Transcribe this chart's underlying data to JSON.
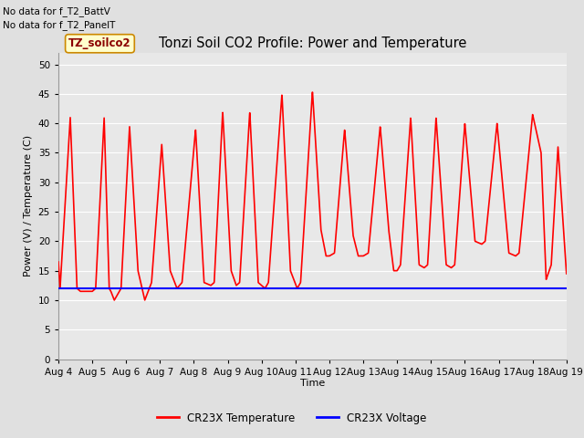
{
  "title": "Tonzi Soil CO2 Profile: Power and Temperature",
  "ylabel": "Power (V) / Temperature (C)",
  "xlabel": "Time",
  "top_left_text_line1": "No data for f_T2_BattV",
  "top_left_text_line2": "No data for f_T2_PanelT",
  "watermark": "TZ_soilco2",
  "ylim": [
    0,
    52
  ],
  "yticks": [
    0,
    5,
    10,
    15,
    20,
    25,
    30,
    35,
    40,
    45,
    50
  ],
  "xtick_labels": [
    "Aug 4",
    "Aug 5",
    "Aug 6",
    "Aug 7",
    "Aug 8",
    "Aug 9",
    "Aug 10",
    "Aug 11",
    "Aug 12",
    "Aug 13",
    "Aug 14",
    "Aug 15",
    "Aug 16",
    "Aug 17",
    "Aug 18",
    "Aug 19"
  ],
  "background_color": "#e0e0e0",
  "plot_bg_color": "#e8e8e8",
  "grid_color": "#ffffff",
  "temp_color": "#ff0000",
  "volt_color": "#0000ff",
  "legend_temp": "CR23X Temperature",
  "legend_volt": "CR23X Voltage",
  "voltage_value": 12.0,
  "segments": [
    [
      0.0,
      1.0,
      11.5,
      41.0,
      0.3
    ],
    [
      1.0,
      1.5,
      11.0,
      11.0,
      0.5
    ],
    [
      1.5,
      2.0,
      10.0,
      39.5,
      0.4
    ],
    [
      2.0,
      3.0,
      10.0,
      36.5,
      0.5
    ],
    [
      3.0,
      4.0,
      12.0,
      39.0,
      0.45
    ],
    [
      4.0,
      4.5,
      12.5,
      42.0,
      0.5
    ],
    [
      4.5,
      5.0,
      12.5,
      42.0,
      0.4
    ],
    [
      5.0,
      6.0,
      13.0,
      42.0,
      0.35
    ],
    [
      6.0,
      7.0,
      12.0,
      45.0,
      0.5
    ],
    [
      7.0,
      8.0,
      15.0,
      45.5,
      0.45
    ],
    [
      8.0,
      9.0,
      17.5,
      39.0,
      0.45
    ],
    [
      9.0,
      10.0,
      15.0,
      39.5,
      0.5
    ],
    [
      10.0,
      11.0,
      15.5,
      41.5,
      0.35
    ],
    [
      11.0,
      12.0,
      15.5,
      41.0,
      0.5
    ],
    [
      12.0,
      13.0,
      19.5,
      40.0,
      0.5
    ],
    [
      13.0,
      14.0,
      17.5,
      42.0,
      0.4
    ],
    [
      14.0,
      15.0,
      13.5,
      36.0,
      0.5
    ]
  ]
}
